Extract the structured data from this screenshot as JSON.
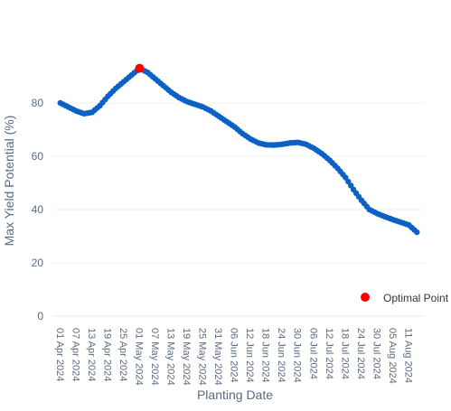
{
  "chart_data": {
    "type": "scatter",
    "title": "",
    "xlabel": "Planting Date",
    "ylabel": "Max Yield Potential (%)",
    "ylim": [
      0,
      100
    ],
    "yticks": [
      0,
      20,
      40,
      60,
      80
    ],
    "xlim": [
      "2024-03-29",
      "2024-08-17"
    ],
    "xticks": [
      "01 Apr 2024",
      "07 Apr 2024",
      "13 Apr 2024",
      "19 Apr 2024",
      "25 Apr 2024",
      "01 May 2024",
      "07 May 2024",
      "13 May 2024",
      "19 May 2024",
      "25 May 2024",
      "31 May 2024",
      "06 Jun 2024",
      "12 Jun 2024",
      "18 Jun 2024",
      "24 Jun 2024",
      "30 Jun 2024",
      "06 Jul 2024",
      "12 Jul 2024",
      "18 Jul 2024",
      "24 Jul 2024",
      "30 Jul 2024",
      "05 Aug 2024",
      "11 Aug 2024"
    ],
    "grid": true,
    "legend_position": "bottom-right",
    "series": [
      {
        "color": "#0b62c4",
        "points": [
          [
            "2024-04-01",
            80
          ],
          [
            "2024-04-04",
            78.5
          ],
          [
            "2024-04-07",
            77
          ],
          [
            "2024-04-10",
            76
          ],
          [
            "2024-04-13",
            76.5
          ],
          [
            "2024-04-16",
            79
          ],
          [
            "2024-04-19",
            82.5
          ],
          [
            "2024-04-22",
            85.5
          ],
          [
            "2024-04-25",
            88
          ],
          [
            "2024-04-28",
            90.5
          ],
          [
            "2024-05-01",
            93
          ],
          [
            "2024-05-04",
            91.5
          ],
          [
            "2024-05-07",
            89
          ],
          [
            "2024-05-10",
            86.5
          ],
          [
            "2024-05-13",
            84
          ],
          [
            "2024-05-16",
            82
          ],
          [
            "2024-05-19",
            80.5
          ],
          [
            "2024-05-22",
            79.5
          ],
          [
            "2024-05-25",
            78.5
          ],
          [
            "2024-05-28",
            77
          ],
          [
            "2024-05-31",
            75
          ],
          [
            "2024-06-03",
            73
          ],
          [
            "2024-06-06",
            71
          ],
          [
            "2024-06-09",
            68.5
          ],
          [
            "2024-06-12",
            66.5
          ],
          [
            "2024-06-15",
            65
          ],
          [
            "2024-06-18",
            64.3
          ],
          [
            "2024-06-21",
            64.2
          ],
          [
            "2024-06-24",
            64.5
          ],
          [
            "2024-06-27",
            65
          ],
          [
            "2024-06-30",
            65.2
          ],
          [
            "2024-07-03",
            64.5
          ],
          [
            "2024-07-06",
            63
          ],
          [
            "2024-07-09",
            61
          ],
          [
            "2024-07-12",
            58.5
          ],
          [
            "2024-07-15",
            55.5
          ],
          [
            "2024-07-18",
            52
          ],
          [
            "2024-07-21",
            47.5
          ],
          [
            "2024-07-24",
            43.5
          ],
          [
            "2024-07-27",
            40
          ],
          [
            "2024-07-30",
            38.5
          ],
          [
            "2024-08-02",
            37.3
          ],
          [
            "2024-08-05",
            36.2
          ],
          [
            "2024-08-08",
            35.2
          ],
          [
            "2024-08-11",
            34.2
          ],
          [
            "2024-08-14",
            31.5
          ]
        ]
      },
      {
        "name": "Optimal Point",
        "color": "#ff0000",
        "points": [
          [
            "2024-05-01",
            93
          ]
        ]
      }
    ]
  }
}
